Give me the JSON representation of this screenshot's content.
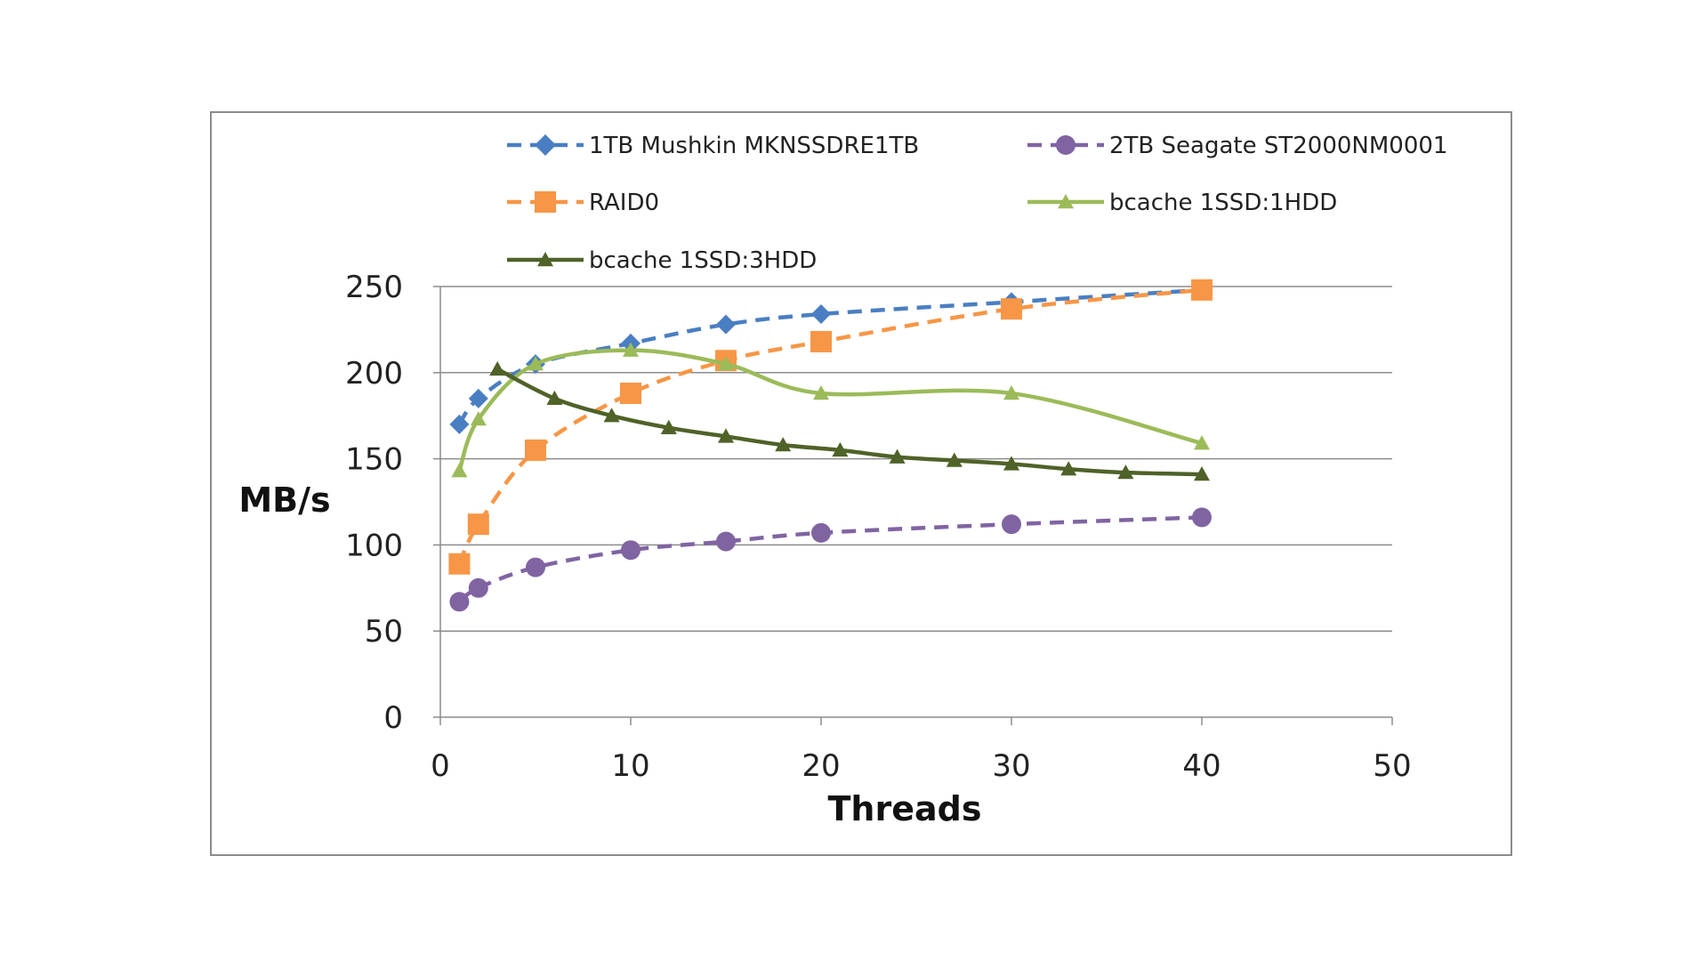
{
  "chart_data": {
    "type": "line",
    "title": "",
    "xlabel": "Threads",
    "ylabel": "MB/s",
    "xlim": [
      0,
      50
    ],
    "ylim": [
      0,
      250
    ],
    "xticks": [
      0,
      10,
      20,
      30,
      40,
      50
    ],
    "yticks": [
      0,
      50,
      100,
      150,
      200,
      250
    ],
    "grid": "horizontal",
    "legend_position": "top",
    "series": [
      {
        "name": "1TB Mushkin MKNSSDRE1TB",
        "color": "#4a7ec2",
        "dash": "dashed",
        "marker": "diamond",
        "smooth": true,
        "x": [
          1,
          2,
          5,
          10,
          15,
          20,
          30,
          40
        ],
        "y": [
          170,
          185,
          205,
          217,
          228,
          234,
          241,
          248
        ]
      },
      {
        "name": "2TB Seagate ST2000NM0001",
        "color": "#8064a2",
        "dash": "dashed",
        "marker": "circle",
        "smooth": true,
        "x": [
          1,
          2,
          5,
          10,
          15,
          20,
          30,
          40
        ],
        "y": [
          67,
          75,
          87,
          97,
          102,
          107,
          112,
          116
        ]
      },
      {
        "name": "RAID0",
        "color": "#f79646",
        "dash": "dashed",
        "marker": "square",
        "smooth": true,
        "x": [
          1,
          2,
          5,
          10,
          15,
          20,
          30,
          40
        ],
        "y": [
          89,
          112,
          155,
          188,
          207,
          218,
          237,
          248
        ]
      },
      {
        "name": "bcache 1SSD:1HDD",
        "color": "#9bbb59",
        "dash": "solid",
        "marker": "triangle",
        "smooth": true,
        "x": [
          1,
          2,
          5,
          10,
          15,
          20,
          30,
          40
        ],
        "y": [
          143,
          173,
          205,
          213,
          205,
          188,
          188,
          159
        ]
      },
      {
        "name": "bcache 1SSD:3HDD",
        "color": "#4f6228",
        "dash": "solid",
        "marker": "triangle",
        "smooth": true,
        "x": [
          3,
          6,
          9,
          12,
          15,
          18,
          21,
          24,
          27,
          30,
          33,
          36,
          40
        ],
        "y": [
          202,
          185,
          175,
          168,
          163,
          158,
          155,
          151,
          149,
          147,
          144,
          142,
          141
        ]
      }
    ]
  }
}
